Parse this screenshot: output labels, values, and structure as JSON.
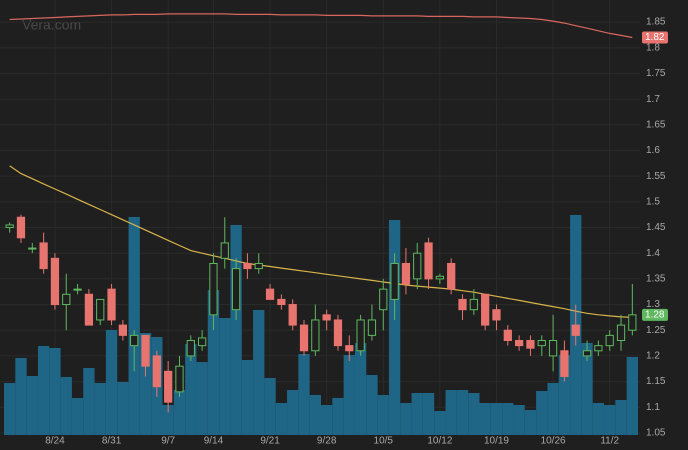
{
  "chart_data": {
    "type": "candlestick",
    "watermark": "Vera.com",
    "categories": [
      null,
      null,
      null,
      null,
      "8/24",
      null,
      null,
      null,
      null,
      "8/31",
      null,
      null,
      null,
      null,
      "9/7",
      null,
      null,
      null,
      "9/14",
      null,
      null,
      null,
      null,
      "9/21",
      null,
      null,
      null,
      null,
      "9/28",
      null,
      null,
      null,
      null,
      "10/5",
      null,
      null,
      null,
      null,
      "10/12",
      null,
      null,
      null,
      null,
      "10/19",
      null,
      null,
      null,
      null,
      "10/26",
      null,
      null,
      null,
      null,
      "11/2",
      null,
      null
    ],
    "open": [
      1.45,
      1.47,
      1.41,
      1.42,
      1.39,
      1.3,
      1.33,
      1.32,
      1.27,
      1.33,
      1.26,
      1.22,
      1.24,
      1.2,
      1.17,
      1.13,
      1.2,
      1.22,
      1.28,
      1.39,
      1.29,
      1.38,
      1.37,
      1.33,
      1.31,
      1.3,
      1.26,
      1.21,
      1.28,
      1.27,
      1.22,
      1.21,
      1.24,
      1.29,
      1.31,
      1.38,
      1.35,
      1.42,
      1.35,
      1.38,
      1.31,
      1.29,
      1.32,
      1.29,
      1.25,
      1.23,
      1.23,
      1.22,
      1.2,
      1.21,
      1.26,
      1.2,
      1.21,
      1.22,
      1.23,
      1.25
    ],
    "high": [
      1.46,
      1.475,
      1.42,
      1.44,
      1.4,
      1.36,
      1.34,
      1.33,
      1.31,
      1.34,
      1.27,
      1.25,
      1.24,
      1.21,
      1.19,
      1.2,
      1.24,
      1.25,
      1.4,
      1.47,
      1.39,
      1.4,
      1.4,
      1.34,
      1.32,
      1.31,
      1.27,
      1.3,
      1.29,
      1.28,
      1.24,
      1.28,
      1.3,
      1.35,
      1.4,
      1.41,
      1.42,
      1.43,
      1.36,
      1.39,
      1.32,
      1.33,
      1.32,
      1.3,
      1.26,
      1.24,
      1.24,
      1.24,
      1.28,
      1.23,
      1.3,
      1.23,
      1.23,
      1.25,
      1.28,
      1.34
    ],
    "low": [
      1.44,
      1.42,
      1.4,
      1.36,
      1.29,
      1.25,
      1.32,
      1.26,
      1.26,
      1.26,
      1.23,
      1.17,
      1.16,
      1.12,
      1.09,
      1.12,
      1.19,
      1.21,
      1.25,
      1.37,
      1.27,
      1.35,
      1.36,
      1.31,
      1.29,
      1.25,
      1.2,
      1.2,
      1.25,
      1.21,
      1.19,
      1.2,
      1.23,
      1.25,
      1.27,
      1.32,
      1.33,
      1.33,
      1.34,
      1.32,
      1.27,
      1.28,
      1.25,
      1.25,
      1.22,
      1.21,
      1.2,
      1.2,
      1.17,
      1.15,
      1.22,
      1.19,
      1.2,
      1.21,
      1.21,
      1.24
    ],
    "close": [
      1.455,
      1.43,
      1.41,
      1.37,
      1.3,
      1.32,
      1.33,
      1.26,
      1.31,
      1.27,
      1.24,
      1.24,
      1.18,
      1.14,
      1.11,
      1.18,
      1.23,
      1.235,
      1.38,
      1.42,
      1.37,
      1.37,
      1.38,
      1.31,
      1.3,
      1.26,
      1.21,
      1.27,
      1.27,
      1.22,
      1.21,
      1.27,
      1.27,
      1.33,
      1.38,
      1.34,
      1.4,
      1.35,
      1.355,
      1.33,
      1.29,
      1.31,
      1.26,
      1.27,
      1.23,
      1.22,
      1.215,
      1.23,
      1.23,
      1.16,
      1.24,
      1.21,
      1.22,
      1.24,
      1.26,
      1.28
    ],
    "up_color": "#5fb85f",
    "down_color": "#e8746f",
    "volume": {
      "color": "#1f6585",
      "values": [
        52,
        77,
        59,
        89,
        87,
        58,
        37,
        67,
        52,
        105,
        53,
        218,
        102,
        98,
        30,
        45,
        91,
        73,
        145,
        117,
        210,
        75,
        125,
        57,
        32,
        45,
        81,
        40,
        30,
        37,
        80,
        92,
        60,
        40,
        215,
        32,
        42,
        42,
        24,
        45,
        45,
        42,
        32,
        32,
        32,
        30,
        25,
        44,
        52,
        80,
        220,
        92,
        32,
        30,
        35,
        78
      ]
    },
    "vlim": [
      0,
      240
    ],
    "lines": [
      {
        "color": "#d9b44a",
        "values": [
          1.57,
          1.555,
          1.545,
          1.535,
          1.525,
          1.515,
          1.505,
          1.495,
          1.485,
          1.475,
          1.465,
          1.455,
          1.445,
          1.435,
          1.425,
          1.415,
          1.405,
          1.4,
          1.395,
          1.39,
          1.385,
          1.38,
          1.377,
          1.374,
          1.371,
          1.368,
          1.365,
          1.362,
          1.359,
          1.356,
          1.353,
          1.35,
          1.347,
          1.344,
          1.341,
          1.338,
          1.336,
          1.334,
          1.332,
          1.33,
          1.327,
          1.324,
          1.32,
          1.316,
          1.312,
          1.308,
          1.304,
          1.3,
          1.296,
          1.292,
          1.287,
          1.283,
          1.28,
          1.278,
          1.276,
          1.275
        ]
      },
      {
        "color": "#d9675f",
        "values": [
          1.855,
          1.856,
          1.857,
          1.858,
          1.859,
          1.86,
          1.861,
          1.862,
          1.863,
          1.864,
          1.864,
          1.865,
          1.865,
          1.865,
          1.866,
          1.866,
          1.866,
          1.866,
          1.866,
          1.866,
          1.865,
          1.865,
          1.865,
          1.865,
          1.864,
          1.864,
          1.864,
          1.864,
          1.863,
          1.863,
          1.863,
          1.863,
          1.862,
          1.862,
          1.862,
          1.862,
          1.862,
          1.861,
          1.861,
          1.861,
          1.861,
          1.86,
          1.86,
          1.86,
          1.859,
          1.858,
          1.857,
          1.855,
          1.852,
          1.848,
          1.843,
          1.838,
          1.833,
          1.828,
          1.824,
          1.82
        ]
      }
    ],
    "ylim": [
      1.046,
      1.893
    ],
    "yticks": [
      1.05,
      1.1,
      1.15,
      1.2,
      1.25,
      1.3,
      1.35,
      1.4,
      1.45,
      1.5,
      1.55,
      1.6,
      1.65,
      1.7,
      1.75,
      1.8,
      1.85
    ],
    "grid": true
  }
}
